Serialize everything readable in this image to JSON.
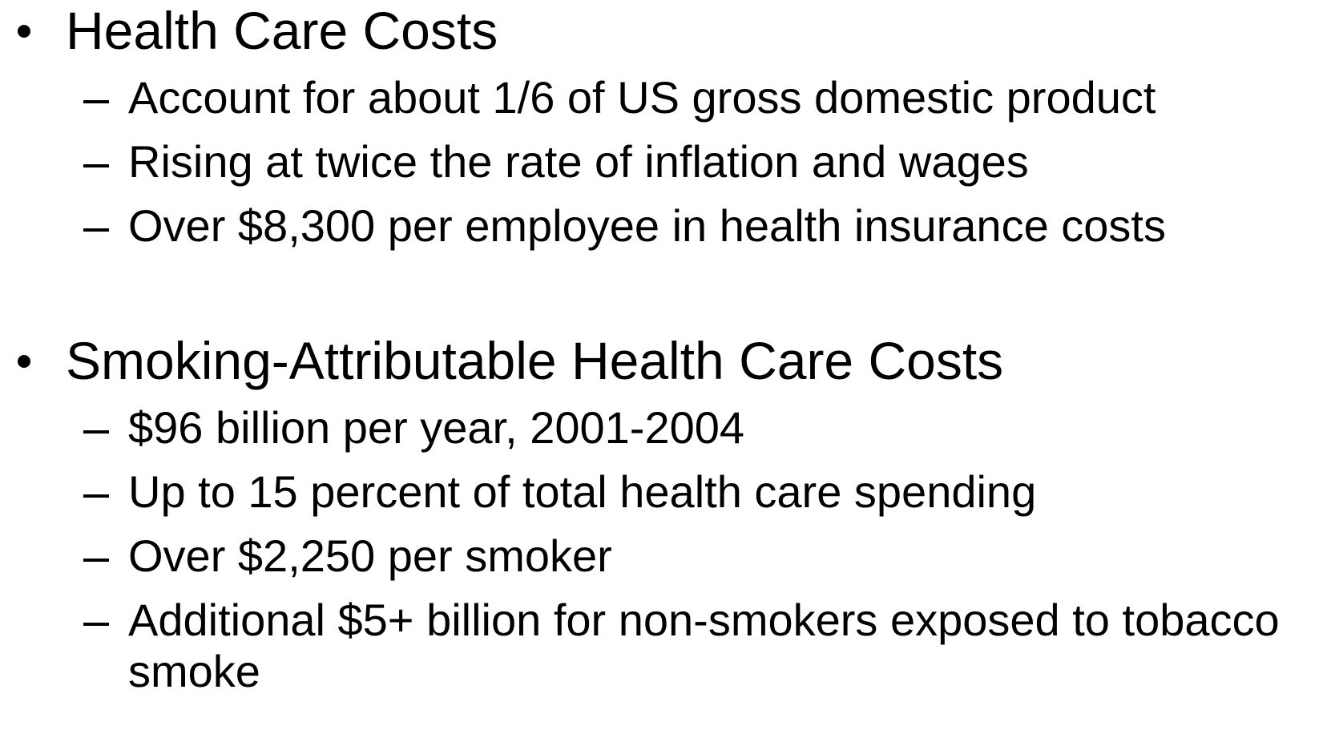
{
  "sections": [
    {
      "heading": "Health Care Costs",
      "items": [
        "Account for about 1/6 of US gross domestic product",
        "Rising at twice the rate of inflation and wages",
        "Over $8,300 per employee in health insurance costs"
      ]
    },
    {
      "heading": "Smoking-Attributable Health Care Costs",
      "items": [
        "$96 billion per year, 2001-2004",
        "Up to 15 percent of total health care spending",
        "Over $2,250 per smoker",
        "Additional $5+ billion for non-smokers exposed to tobacco smoke"
      ]
    }
  ]
}
